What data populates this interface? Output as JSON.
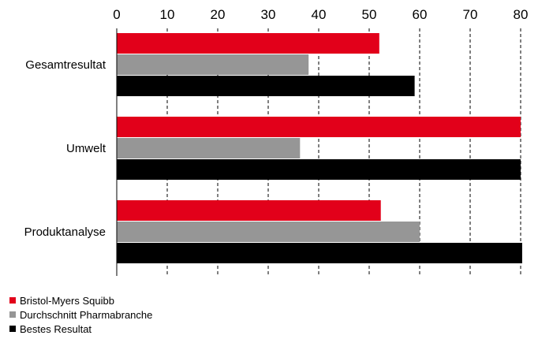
{
  "chart_data": {
    "type": "bar",
    "orientation": "horizontal",
    "categories": [
      "Gesamtresultat",
      "Umwelt",
      "Produktanalyse"
    ],
    "series": [
      {
        "name": "Bristol-Myers Squibb",
        "color": "#e2001a",
        "values": [
          52,
          80,
          52.3
        ]
      },
      {
        "name": "Durchschnitt Pharmabranche",
        "color": "#969696",
        "values": [
          38,
          36.3,
          60
        ]
      },
      {
        "name": "Bestes Resultat",
        "color": "#000000",
        "values": [
          59,
          80,
          80.3
        ]
      }
    ],
    "xticks": [
      0,
      10,
      20,
      30,
      40,
      50,
      60,
      70,
      80
    ],
    "xlim": [
      0,
      80
    ],
    "x_axis_position": "top",
    "grid": "vertical-dashed",
    "legend_position": "bottom-left"
  }
}
